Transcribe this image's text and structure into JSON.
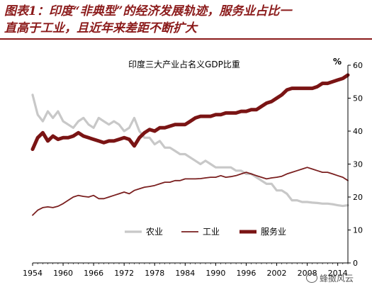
{
  "caption": {
    "line1": "图表1：印度“非典型”的经济发展轨迹，服务业占比一",
    "line2": "直高于工业，且近年来差距不断扩大"
  },
  "watermark": "蜂擞风云",
  "chart_data": {
    "type": "line",
    "title": "印度三大产业占名义GDP比重",
    "unit_label": "%",
    "xlim": [
      1954,
      2016
    ],
    "ylim": [
      0,
      60
    ],
    "x_ticks": [
      "1954",
      "1960",
      "1966",
      "1972",
      "1978",
      "1984",
      "1990",
      "1996",
      "2002",
      "2008",
      "2014"
    ],
    "y_ticks": [
      "0",
      "10",
      "20",
      "30",
      "40",
      "50",
      "60"
    ],
    "legend_position": "bottom-left",
    "grid": false,
    "x": [
      1954,
      1955,
      1956,
      1957,
      1958,
      1959,
      1960,
      1961,
      1962,
      1963,
      1964,
      1965,
      1966,
      1967,
      1968,
      1969,
      1970,
      1971,
      1972,
      1973,
      1974,
      1975,
      1976,
      1977,
      1978,
      1979,
      1980,
      1981,
      1982,
      1983,
      1984,
      1985,
      1986,
      1987,
      1988,
      1989,
      1990,
      1991,
      1992,
      1993,
      1994,
      1995,
      1996,
      1997,
      1998,
      1999,
      2000,
      2001,
      2002,
      2003,
      2004,
      2005,
      2006,
      2007,
      2008,
      2009,
      2010,
      2011,
      2012,
      2013,
      2014,
      2015,
      2016
    ],
    "series": [
      {
        "name": "农业",
        "color": "#c8c8c8",
        "values": [
          51,
          45,
          43,
          46,
          44,
          46,
          43,
          42,
          41,
          43,
          44,
          42,
          41,
          44,
          43,
          42,
          43,
          42,
          40,
          41,
          44,
          40,
          38,
          38,
          36,
          37,
          35,
          35,
          34,
          33,
          33,
          32,
          31,
          30,
          31,
          30,
          29,
          29,
          29,
          29,
          28,
          28,
          27,
          27,
          26,
          25,
          24,
          24,
          22,
          22,
          21,
          19,
          19,
          18.5,
          18.5,
          18.3,
          18.2,
          18.0,
          18.0,
          17.8,
          17.5,
          17.3,
          17.5
        ]
      },
      {
        "name": "工业",
        "color": "#7a1f1f",
        "values": [
          14.5,
          16,
          16.8,
          17,
          16.8,
          17.2,
          18,
          19,
          20,
          20.5,
          20.2,
          20,
          20.5,
          19.5,
          19.5,
          20,
          20.5,
          21,
          21.5,
          21,
          22,
          22.5,
          23,
          23.2,
          23.5,
          24,
          24.5,
          24.5,
          25,
          25,
          25.5,
          25.5,
          25.5,
          25.6,
          25.8,
          26,
          26,
          26.5,
          26,
          26.2,
          26.5,
          27,
          27.5,
          27,
          26.5,
          26,
          25.5,
          25.8,
          26,
          26.3,
          27,
          27.5,
          28,
          28.5,
          29,
          28.5,
          28,
          27.5,
          27.5,
          27,
          26.5,
          26,
          25
        ]
      },
      {
        "name": "服务业",
        "color": "#7a1414",
        "values": [
          34.5,
          38,
          39.5,
          37,
          38.5,
          37.5,
          38,
          38,
          38.5,
          39.5,
          38.5,
          38,
          37.5,
          37,
          36.5,
          37,
          37,
          37.5,
          38,
          37.5,
          35.5,
          38,
          39.5,
          40.5,
          40,
          41,
          41,
          41.5,
          42,
          42,
          42,
          43,
          44,
          44.5,
          44.5,
          44.5,
          45,
          45,
          45.5,
          45.5,
          45.5,
          46,
          46,
          46.5,
          46.5,
          47.5,
          48.5,
          49,
          50,
          51,
          52.5,
          53,
          53,
          53,
          53,
          53,
          53.5,
          54.5,
          54.5,
          55,
          55.5,
          56,
          57
        ]
      }
    ]
  }
}
